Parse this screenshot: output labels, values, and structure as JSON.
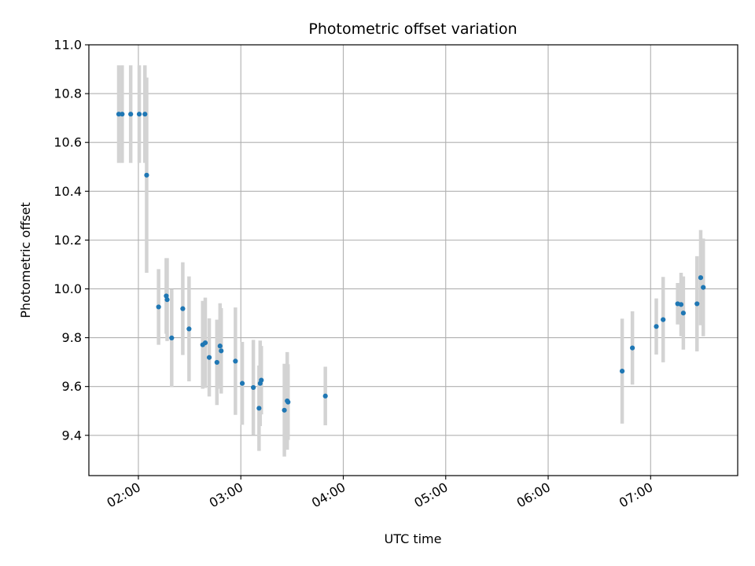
{
  "chart_data": {
    "type": "scatter",
    "title": "Photometric offset variation",
    "xlabel": "UTC time",
    "ylabel": "Photometric offset",
    "x_tick_labels": [
      "02:00",
      "03:00",
      "04:00",
      "05:00",
      "06:00",
      "07:00"
    ],
    "x_tick_values": [
      "02:00",
      "03:00",
      "04:00",
      "05:00",
      "06:00",
      "07:00"
    ],
    "xlim": [
      "01:31",
      "07:51"
    ],
    "y_tick_labels": [
      "9.4",
      "9.6",
      "9.8",
      "10.0",
      "10.2",
      "10.4",
      "10.6",
      "10.8",
      "11.0"
    ],
    "y_tick_values": [
      9.4,
      9.6,
      9.8,
      10.0,
      10.2,
      10.4,
      10.6,
      10.8,
      11.0
    ],
    "ylim": [
      9.235,
      11.0
    ],
    "grid": true,
    "colors": {
      "points": "#1f77b4",
      "error_bars": "#d3d3d3",
      "grid": "#b0b0b0"
    },
    "series": [
      {
        "points": [
          {
            "x": "01:48:30",
            "y": 10.716,
            "yerr": 0.2
          },
          {
            "x": "01:50:30",
            "y": 10.716,
            "yerr": 0.2
          },
          {
            "x": "01:55:30",
            "y": 10.716,
            "yerr": 0.2
          },
          {
            "x": "02:00:30",
            "y": 10.716,
            "yerr": 0.2
          },
          {
            "x": "02:03:50",
            "y": 10.716,
            "yerr": 0.2
          },
          {
            "x": "02:04:50",
            "y": 10.466,
            "yerr": 0.4
          },
          {
            "x": "02:11:50",
            "y": 9.926,
            "yerr": 0.155
          },
          {
            "x": "02:16:20",
            "y": 9.971,
            "yerr": 0.155
          },
          {
            "x": "02:16:50",
            "y": 9.956,
            "yerr": 0.17
          },
          {
            "x": "02:19:30",
            "y": 9.799,
            "yerr": 0.2
          },
          {
            "x": "02:26:00",
            "y": 9.919,
            "yerr": 0.19
          },
          {
            "x": "02:29:40",
            "y": 9.836,
            "yerr": 0.215
          },
          {
            "x": "02:37:40",
            "y": 9.771,
            "yerr": 0.18
          },
          {
            "x": "02:39:10",
            "y": 9.779,
            "yerr": 0.185
          },
          {
            "x": "02:41:30",
            "y": 9.719,
            "yerr": 0.16
          },
          {
            "x": "02:46:00",
            "y": 9.699,
            "yerr": 0.175
          },
          {
            "x": "02:47:50",
            "y": 9.766,
            "yerr": 0.175
          },
          {
            "x": "02:48:30",
            "y": 9.746,
            "yerr": 0.175
          },
          {
            "x": "02:56:50",
            "y": 9.704,
            "yerr": 0.22
          },
          {
            "x": "03:00:50",
            "y": 9.613,
            "yerr": 0.17
          },
          {
            "x": "03:07:20",
            "y": 9.596,
            "yerr": 0.195
          },
          {
            "x": "03:10:40",
            "y": 9.511,
            "yerr": 0.175
          },
          {
            "x": "03:11:20",
            "y": 9.613,
            "yerr": 0.175
          },
          {
            "x": "03:12:00",
            "y": 9.626,
            "yerr": 0.14
          },
          {
            "x": "03:25:30",
            "y": 9.503,
            "yerr": 0.19
          },
          {
            "x": "03:27:10",
            "y": 9.541,
            "yerr": 0.2
          },
          {
            "x": "03:27:40",
            "y": 9.536,
            "yerr": 0.155
          },
          {
            "x": "03:49:30",
            "y": 9.561,
            "yerr": 0.12
          },
          {
            "x": "06:43:20",
            "y": 9.663,
            "yerr": 0.215
          },
          {
            "x": "06:49:20",
            "y": 9.758,
            "yerr": 0.15
          },
          {
            "x": "07:03:20",
            "y": 9.846,
            "yerr": 0.115
          },
          {
            "x": "07:07:20",
            "y": 9.874,
            "yerr": 0.175
          },
          {
            "x": "07:15:50",
            "y": 9.939,
            "yerr": 0.085
          },
          {
            "x": "07:17:50",
            "y": 9.936,
            "yerr": 0.13
          },
          {
            "x": "07:19:10",
            "y": 9.901,
            "yerr": 0.15
          },
          {
            "x": "07:27:10",
            "y": 9.939,
            "yerr": 0.195
          },
          {
            "x": "07:29:20",
            "y": 10.046,
            "yerr": 0.195
          },
          {
            "x": "07:30:50",
            "y": 10.006,
            "yerr": 0.2
          }
        ]
      }
    ]
  }
}
